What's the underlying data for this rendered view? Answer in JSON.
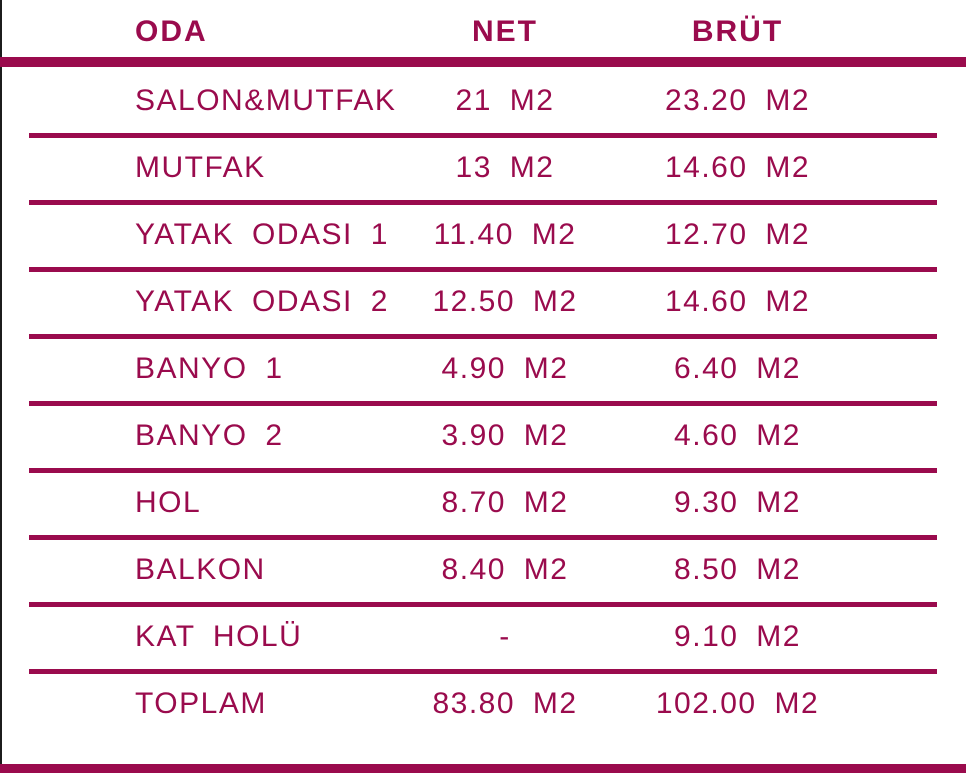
{
  "table": {
    "headers": {
      "oda": "ODA",
      "net": "NET",
      "brut": "BRÜT"
    },
    "rows": [
      {
        "name": "SALON&MUTFAK",
        "net": "21 M2",
        "brut": "23.20 M2"
      },
      {
        "name": "MUTFAK",
        "net": "13 M2",
        "brut": "14.60 M2"
      },
      {
        "name": "YATAK ODASI 1",
        "net": "11.40 M2",
        "brut": "12.70 M2"
      },
      {
        "name": "YATAK ODASI 2",
        "net": "12.50 M2",
        "brut": "14.60 M2"
      },
      {
        "name": "BANYO 1",
        "net": "4.90 M2",
        "brut": "6.40 M2"
      },
      {
        "name": "BANYO 2",
        "net": "3.90 M2",
        "brut": "4.60 M2"
      },
      {
        "name": "HOL",
        "net": "8.70 M2",
        "brut": "9.30 M2"
      },
      {
        "name": "BALKON",
        "net": "8.40 M2",
        "brut": "8.50 M2"
      },
      {
        "name": "KAT HOLÜ",
        "net": "-",
        "brut": "9.10 M2"
      },
      {
        "name": "TOPLAM",
        "net": "83.80 M2",
        "brut": "102.00 M2"
      }
    ],
    "colors": {
      "accent": "#9a0b4d",
      "edge_line": "#1c1c1c",
      "background": "#ffffff"
    }
  },
  "chart_data": {
    "type": "table",
    "title": "",
    "columns": [
      "ODA",
      "NET",
      "BRÜT"
    ],
    "rows": [
      [
        "SALON&MUTFAK",
        "21 M2",
        "23.20 M2"
      ],
      [
        "MUTFAK",
        "13 M2",
        "14.60 M2"
      ],
      [
        "YATAK ODASI 1",
        "11.40 M2",
        "12.70 M2"
      ],
      [
        "YATAK ODASI 2",
        "12.50 M2",
        "14.60 M2"
      ],
      [
        "BANYO 1",
        "4.90 M2",
        "6.40 M2"
      ],
      [
        "BANYO 2",
        "3.90 M2",
        "4.60 M2"
      ],
      [
        "HOL",
        "8.70 M2",
        "9.30 M2"
      ],
      [
        "BALKON",
        "8.40 M2",
        "8.50 M2"
      ],
      [
        "KAT HOLÜ",
        "-",
        "9.10 M2"
      ],
      [
        "TOPLAM",
        "83.80 M2",
        "102.00 M2"
      ]
    ],
    "net_values_m2": [
      21,
      13,
      11.4,
      12.5,
      4.9,
      3.9,
      8.7,
      8.4,
      null,
      83.8
    ],
    "brut_values_m2": [
      23.2,
      14.6,
      12.7,
      14.6,
      6.4,
      4.6,
      9.3,
      8.5,
      9.1,
      102.0
    ]
  }
}
